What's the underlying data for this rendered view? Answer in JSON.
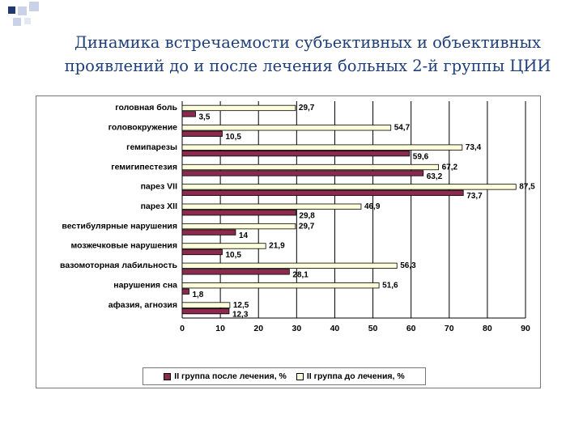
{
  "slide": {
    "title_line1": "Динамика встречаемости субъективных и объективных",
    "title_line2": "проявлений до и после лечения больных 2-й группы ЦИИ"
  },
  "colors": {
    "title": "#1f3f7a",
    "corner_dark": "#1f3870",
    "corner_light": "#c9d2e6",
    "after_bar": "#8b2a4d",
    "before_bar": "#ffffdc"
  },
  "chart_data": {
    "type": "bar",
    "orientation": "horizontal",
    "categories": [
      "головная боль",
      "головокружение",
      "гемипарезы",
      "гемигипестезия",
      "парез VII",
      "парез XII",
      "вестибулярные нарушения",
      "мозжечковые нарушения",
      "вазомоторная лабильность",
      "нарушения сна",
      "афазия, агнозия"
    ],
    "series": [
      {
        "name": "II группа до лечения, %",
        "color": "#ffffdc",
        "values": [
          29.7,
          54.7,
          73.4,
          67.2,
          87.5,
          46.9,
          29.7,
          21.9,
          56.3,
          51.6,
          12.5
        ],
        "labels": [
          "29,7",
          "54,7",
          "73,4",
          "67,2",
          "87,5",
          "46,9",
          "29,7",
          "21,9",
          "56,3",
          "51,6",
          "12,5"
        ]
      },
      {
        "name": "II группа после лечения, %",
        "color": "#8b2a4d",
        "values": [
          3.5,
          10.5,
          59.6,
          63.2,
          73.7,
          29.8,
          14,
          10.5,
          28.1,
          1.8,
          12.3
        ],
        "labels": [
          "3,5",
          "10,5",
          "59,6",
          "63,2",
          "73,7",
          "29,8",
          "14",
          "10,5",
          "28,1",
          "1,8",
          "12,3"
        ]
      }
    ],
    "xlim": [
      0,
      90
    ],
    "xticks": [
      "0",
      "10",
      "20",
      "30",
      "40",
      "50",
      "60",
      "70",
      "80",
      "90"
    ],
    "grid": "vertical",
    "legend": {
      "position": "bottom",
      "entries": [
        "II группа после лечения, %",
        "II группа до лечения, %"
      ]
    }
  }
}
